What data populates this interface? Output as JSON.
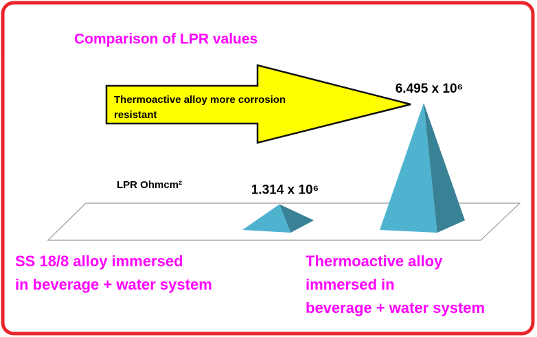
{
  "chart_data": {
    "type": "pyramid",
    "title": "Comparison of LPR  values",
    "axis_label": "LPR Ohmcm²",
    "annotation": [
      "Thermoactive alloy more corrosion",
      "resistant"
    ],
    "categories": [
      [
        "SS 18/8 alloy immersed",
        "in beverage + water system"
      ],
      [
        "Thermoactive alloy",
        "immersed in",
        "beverage + water system"
      ]
    ],
    "values": [
      1314000,
      6495000
    ],
    "value_labels": [
      "1.314 x 10⁶",
      "6.495 x 10⁶"
    ],
    "color": "#4fb3cf",
    "arrow_color": "#ffff00",
    "label_color": "#ff00ff"
  }
}
